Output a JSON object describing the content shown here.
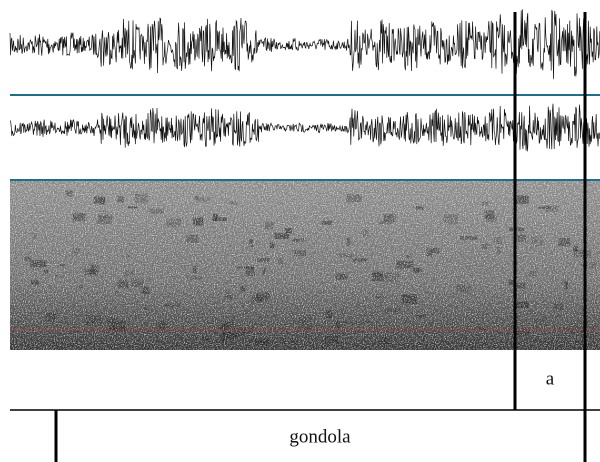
{
  "tiers": [
    {
      "intervals": [
        {
          "label": "a"
        }
      ]
    },
    {
      "intervals": [
        {
          "label": "gondola"
        }
      ]
    }
  ]
}
